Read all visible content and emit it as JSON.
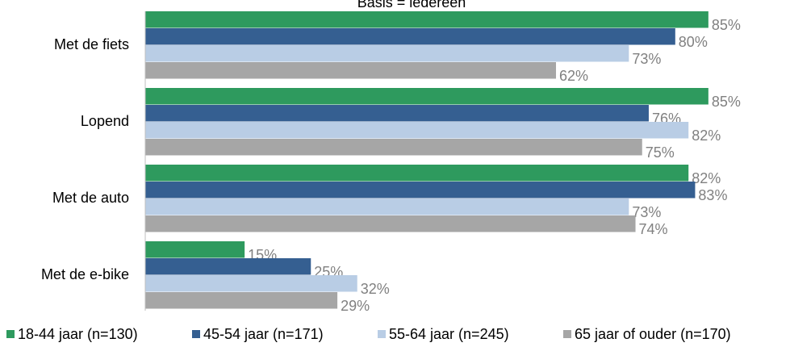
{
  "chart_data": {
    "type": "hbar",
    "title": "Basis = iedereen",
    "categories": [
      "Met de fiets",
      "Lopend",
      "Met de auto",
      "Met de e-bike"
    ],
    "series": [
      {
        "name": "18-44 jaar (n=130)",
        "color": "#2e9a5e",
        "values": [
          85,
          85,
          82,
          15
        ],
        "value_labels": [
          "85%",
          "85%",
          "82%",
          "15%"
        ]
      },
      {
        "name": "45-54 jaar (n=171)",
        "color": "#355f91",
        "values": [
          80,
          76,
          83,
          25
        ],
        "value_labels": [
          "80%",
          "76%",
          "83%",
          "25%"
        ]
      },
      {
        "name": "55-64 jaar (n=245)",
        "color": "#b9cde5",
        "values": [
          73,
          82,
          73,
          32
        ],
        "value_labels": [
          "73%",
          "82%",
          "73%",
          "32%"
        ]
      },
      {
        "name": "65 jaar of ouder (n=170)",
        "color": "#a6a6a6",
        "values": [
          62,
          75,
          74,
          29
        ],
        "value_labels": [
          "62%",
          "75%",
          "74%",
          "29%"
        ]
      }
    ],
    "xlim": [
      0,
      100
    ],
    "legend": "bottom"
  }
}
